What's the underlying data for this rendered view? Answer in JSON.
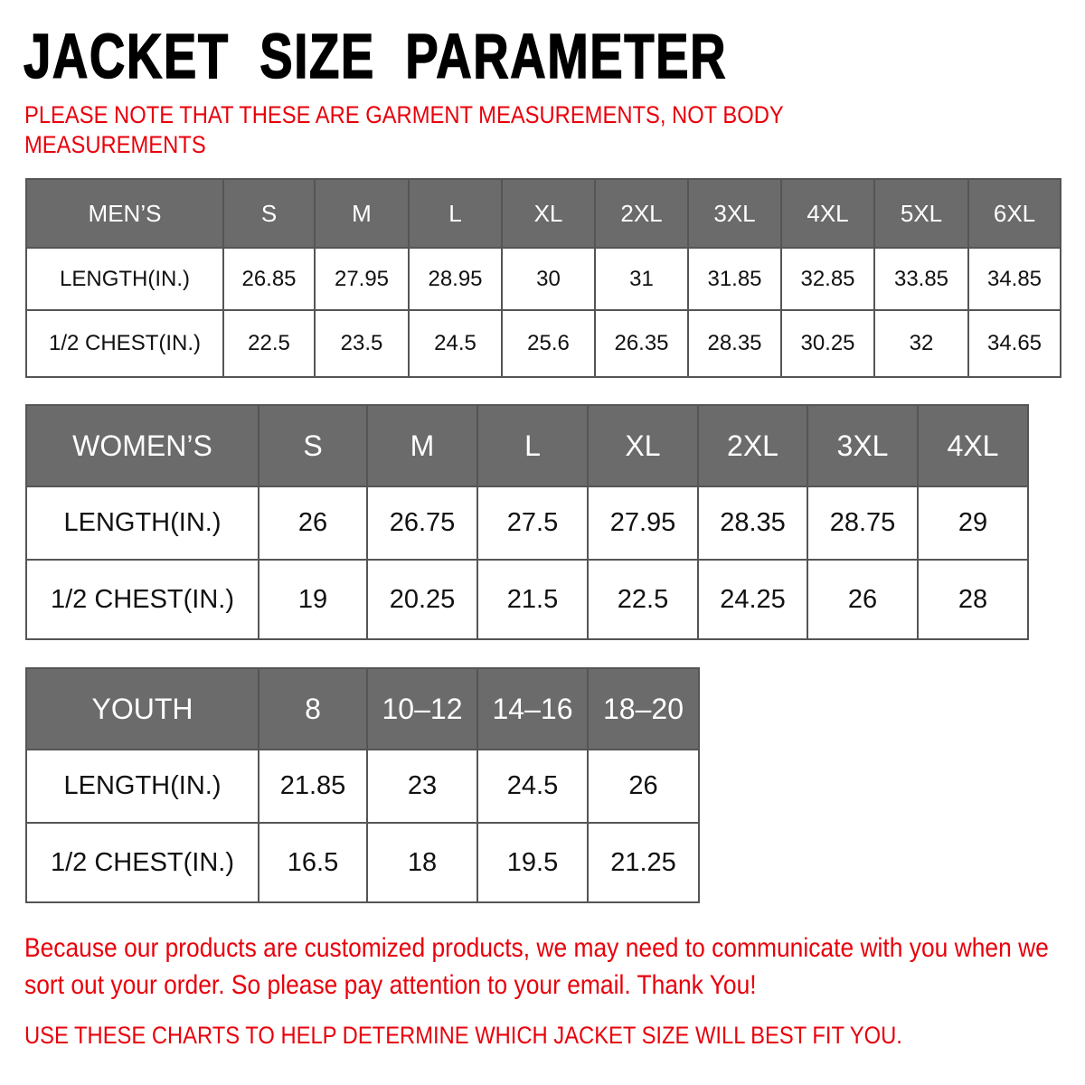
{
  "title": "JACKET  SIZE  PARAMETER",
  "note": "PLEASE NOTE THAT THESE ARE GARMENT MEASUREMENTS, NOT BODY MEASUREMENTS",
  "tables": [
    {
      "id": "mens",
      "header": [
        "MEN’S",
        "S",
        "M",
        "L",
        "XL",
        "2XL",
        "3XL",
        "4XL",
        "5XL",
        "6XL"
      ],
      "rows": [
        [
          "LENGTH(IN.)",
          "26.85",
          "27.95",
          "28.95",
          "30",
          "31",
          "31.85",
          "32.85",
          "33.85",
          "34.85"
        ],
        [
          "1/2 CHEST(IN.)",
          "22.5",
          "23.5",
          "24.5",
          "25.6",
          "26.35",
          "28.35",
          "30.25",
          "32",
          "34.65"
        ]
      ]
    },
    {
      "id": "womens",
      "header": [
        "WOMEN’S",
        "S",
        "M",
        "L",
        "XL",
        "2XL",
        "3XL",
        "4XL"
      ],
      "rows": [
        [
          "LENGTH(IN.)",
          "26",
          "26.75",
          "27.5",
          "27.95",
          "28.35",
          "28.75",
          "29"
        ],
        [
          "1/2 CHEST(IN.)",
          "19",
          "20.25",
          "21.5",
          "22.5",
          "24.25",
          "26",
          "28"
        ]
      ]
    },
    {
      "id": "youth",
      "header": [
        "YOUTH",
        "8",
        "10–12",
        "14–16",
        "18–20"
      ],
      "rows": [
        [
          "LENGTH(IN.)",
          "21.85",
          "23",
          "24.5",
          "26"
        ],
        [
          "1/2 CHEST(IN.)",
          "16.5",
          "18",
          "19.5",
          "21.25"
        ]
      ]
    }
  ],
  "footer_message": "Because our products are customized products, we may need to communicate with you when we sort out your order. So please pay attention to your email. Thank You!",
  "footer_note": "USE THESE CHARTS TO HELP DETERMINE WHICH JACKET SIZE WILL BEST FIT YOU.",
  "colors": {
    "header_bg": "#6b6b6b",
    "note_red": "#e8000b"
  }
}
